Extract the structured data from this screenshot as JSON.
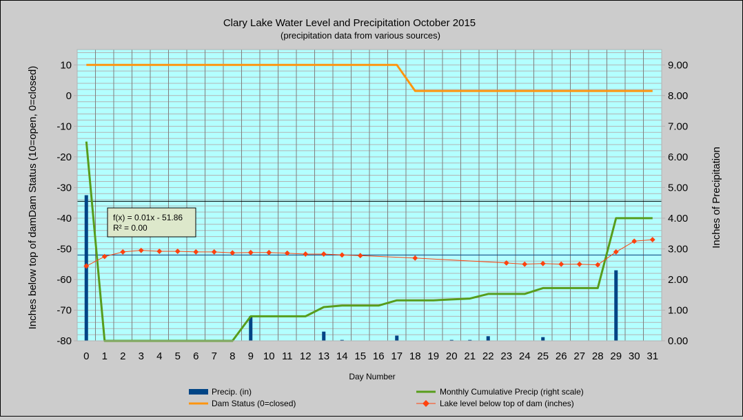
{
  "chart_data": {
    "type": "combo",
    "title": "Clary Lake Water Level and Precipitation October 2015",
    "subtitle": "(precipitation data from various sources)",
    "xlabel": "Day Number",
    "ylabel_left": "Inches  below  top of  damDam Status (10=open, 0=closed)",
    "ylabel_right": "Inches  of  Precipitation",
    "x_ticks": [
      0,
      1,
      2,
      3,
      4,
      5,
      6,
      7,
      8,
      9,
      10,
      11,
      12,
      13,
      14,
      15,
      16,
      17,
      18,
      19,
      20,
      21,
      22,
      23,
      24,
      25,
      26,
      27,
      28,
      29,
      30,
      31
    ],
    "xlim": [
      -0.5,
      31.5
    ],
    "ylim_left": [
      -80,
      15
    ],
    "ylim_right": [
      0,
      9.5
    ],
    "left_ticks": [
      10,
      0,
      -10,
      -20,
      -30,
      -40,
      -50,
      -60,
      -70,
      -80
    ],
    "right_ticks": [
      9,
      8,
      7,
      6,
      5,
      4,
      3,
      2,
      1,
      0
    ],
    "right_tick_labels": [
      "9.00",
      "8.00",
      "7.00",
      "6.00",
      "5.00",
      "4.00",
      "3.00",
      "2.00",
      "1.00",
      "0.00"
    ],
    "grid": true,
    "reference_lines_left": [
      -34.5,
      -52
    ],
    "series": [
      {
        "name": "Precip. (in)",
        "kind": "bar",
        "axis": "right",
        "color": "#004586",
        "x": [
          0,
          9,
          13,
          14,
          17,
          20,
          21,
          22,
          25,
          29
        ],
        "values": [
          4.75,
          0.8,
          0.3,
          0.03,
          0.17,
          0.03,
          0.03,
          0.15,
          0.12,
          2.3
        ]
      },
      {
        "name": "Monthly Cumulative Precip (right scale)",
        "kind": "line",
        "axis": "right",
        "color": "#579d1c",
        "x": [
          0,
          1,
          2,
          3,
          4,
          5,
          6,
          7,
          8,
          9,
          10,
          11,
          12,
          13,
          14,
          15,
          16,
          17,
          18,
          19,
          20,
          21,
          22,
          23,
          24,
          25,
          26,
          27,
          28,
          29,
          30,
          31
        ],
        "values": [
          6.5,
          0,
          0,
          0,
          0,
          0,
          0,
          0,
          0,
          0.8,
          0.8,
          0.8,
          0.8,
          1.1,
          1.15,
          1.15,
          1.15,
          1.32,
          1.32,
          1.32,
          1.35,
          1.38,
          1.53,
          1.53,
          1.53,
          1.72,
          1.72,
          1.72,
          1.72,
          4.0,
          4.0,
          4.0
        ]
      },
      {
        "name": "Dam Status (0=closed)",
        "kind": "line",
        "axis": "left",
        "color": "#ff950e",
        "x": [
          0,
          17,
          18,
          31
        ],
        "values": [
          10,
          10,
          1.5,
          1.5
        ]
      },
      {
        "name": "Lake level below top of dam (inches)",
        "kind": "line-markers",
        "axis": "left",
        "color": "#ff420e",
        "x": [
          0,
          1,
          2,
          3,
          4,
          5,
          6,
          7,
          8,
          9,
          10,
          11,
          12,
          13,
          14,
          15,
          18,
          23,
          24,
          25,
          26,
          27,
          28,
          29,
          30,
          31
        ],
        "values": [
          -55.6,
          -52.5,
          -51.0,
          -50.5,
          -50.8,
          -50.8,
          -51.0,
          -51.0,
          -51.3,
          -51.2,
          -51.2,
          -51.4,
          -51.7,
          -51.7,
          -52.0,
          -52.2,
          -53.0,
          -54.6,
          -55.0,
          -54.8,
          -55.0,
          -55.0,
          -55.2,
          -51.0,
          -47.5,
          -47.0
        ]
      }
    ],
    "annotation": {
      "line1": "f(x) = 0.01x - 51.86",
      "line2": "R² = 0.00"
    },
    "legend": {
      "placement": "bottom",
      "items": [
        {
          "label": "Precip. (in)",
          "swatch": "bar",
          "color": "#004586"
        },
        {
          "label": "Monthly Cumulative Precip (right scale)",
          "swatch": "line",
          "color": "#579d1c"
        },
        {
          "label": "Dam Status (0=closed)",
          "swatch": "line",
          "color": "#ff950e"
        },
        {
          "label": "Lake level below top of dam (inches)",
          "swatch": "marker-line",
          "color": "#ff420e"
        }
      ]
    },
    "colors": {
      "plot_background": "#b3ffff",
      "page_background": "#cccccc",
      "grid": "#b3b3b3"
    }
  }
}
